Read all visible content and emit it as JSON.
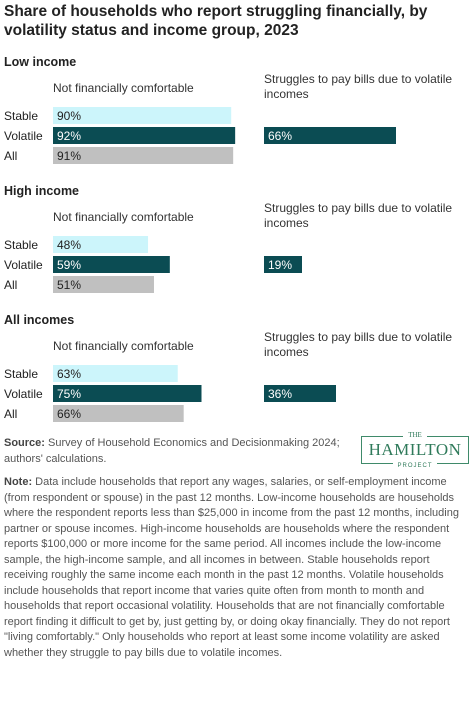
{
  "title": "Share of households who report struggling financially, by volatility status and income group, 2023",
  "chart_data": {
    "type": "bar",
    "orientation": "horizontal",
    "panel_left_title": "Not financially comfortable",
    "panel_right_title": "Struggles to pay bills due to volatile incomes",
    "categories": [
      "Stable",
      "Volatile",
      "All"
    ],
    "xlim": [
      0,
      100
    ],
    "unit": "%",
    "groups": [
      {
        "name": "Low income",
        "not_comfortable": [
          90,
          92,
          91
        ],
        "struggles_bills": [
          null,
          66,
          null
        ]
      },
      {
        "name": "High income",
        "not_comfortable": [
          48,
          59,
          51
        ],
        "struggles_bills": [
          null,
          19,
          null
        ]
      },
      {
        "name": "All incomes",
        "not_comfortable": [
          63,
          75,
          66
        ],
        "struggles_bills": [
          null,
          36,
          null
        ]
      }
    ],
    "colors": {
      "Stable": "#ccf5fb",
      "Volatile": "#0b4c53",
      "All": "#c0c0c0"
    },
    "label_colors": {
      "Stable": "#222222",
      "Volatile": "#ffffff",
      "All": "#222222"
    }
  },
  "footer": {
    "source_label": "Source:",
    "source_text": "Survey of Household Economics and Decisionmaking 2024; authors' calculations.",
    "note_label": "Note:",
    "note_text": "Data include households that report any wages, salaries, or self-employment income (from respondent or spouse) in the past 12 months. Low-income households are households where the respondent reports less than $25,000 in income from the past 12 months, including partner or spouse incomes. High-income households are households where the respondent reports $100,000 or more income for the same period. All incomes include the low-income sample, the high-income sample, and all incomes in between. Stable households report receiving roughly the same income each month in the past 12 months. Volatile households include households that report income that varies quite often from month to month and households that report occasional volatility. Households that are not financially comfortable report finding it difficult to get by, just getting by, or doing okay financially. They do not report \"living comfortably.\" Only households who report at least some income volatility are asked whether they struggle to pay bills due to volatile incomes."
  },
  "logo": {
    "top": "THE",
    "main": "HAMILTON",
    "bottom": "PROJECT"
  }
}
